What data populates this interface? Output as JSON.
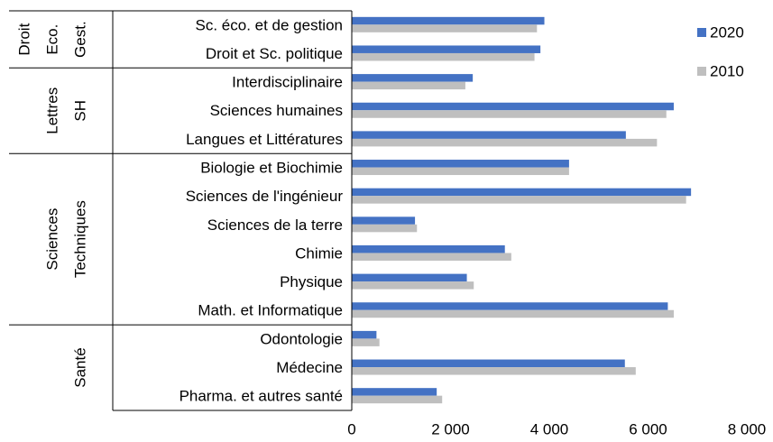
{
  "chart_data": {
    "type": "bar",
    "orientation": "horizontal",
    "groups": [
      {
        "lines": [
          "Droit",
          "Eco.",
          "Gest."
        ],
        "count": 2
      },
      {
        "lines": [
          "Lettres",
          "SH"
        ],
        "count": 3
      },
      {
        "lines": [
          "Sciences",
          "Techniques"
        ],
        "count": 6
      },
      {
        "lines": [
          "Santé"
        ],
        "count": 3
      }
    ],
    "categories": [
      "Sc. éco. et de gestion",
      "Droit et Sc. politique",
      "Interdisciplinaire",
      "Sciences humaines",
      "Langues et Littératures",
      "Biologie et Biochimie",
      "Sciences de l'ingénieur",
      "Sciences de la terre",
      "Chimie",
      "Physique",
      "Math. et Informatique",
      "Odontologie",
      "Médecine",
      "Pharma. et autres santé"
    ],
    "series": [
      {
        "name": "2020",
        "color": "#4472c4",
        "values": [
          3900,
          3820,
          2450,
          6520,
          5550,
          4400,
          6870,
          1280,
          3100,
          2330,
          6400,
          500,
          5530,
          1720
        ]
      },
      {
        "name": "2010",
        "color": "#bfbfbf",
        "values": [
          3750,
          3700,
          2300,
          6370,
          6180,
          4400,
          6770,
          1320,
          3230,
          2470,
          6520,
          560,
          5750,
          1830
        ]
      }
    ],
    "xlim": [
      0,
      8000
    ],
    "xticks": [
      0,
      {
        "value": 2000,
        "label": "2 000"
      },
      {
        "value": 4000,
        "label": "4 000"
      },
      {
        "value": 6000,
        "label": "6 000"
      },
      {
        "value": 8000,
        "label": "8 000"
      }
    ],
    "grid": false,
    "legend": "right"
  }
}
